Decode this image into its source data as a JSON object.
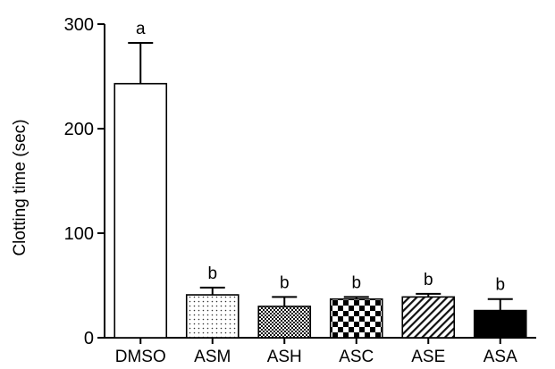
{
  "chart_data": {
    "type": "bar",
    "title": "",
    "xlabel": "",
    "ylabel": "Clotting time (sec)",
    "ylim": [
      0,
      300
    ],
    "yticks": [
      0,
      100,
      200,
      300
    ],
    "grid": false,
    "categories": [
      "DMSO",
      "ASM",
      "ASH",
      "ASC",
      "ASE",
      "ASA"
    ],
    "values": [
      243,
      41,
      30,
      37,
      39,
      26
    ],
    "errors": [
      39,
      7,
      9,
      2,
      3,
      11
    ],
    "significance": [
      "a",
      "b",
      "b",
      "b",
      "b",
      "b"
    ],
    "fills": [
      "empty",
      "dots",
      "grid-fine",
      "checker",
      "diagonal",
      "solid"
    ]
  }
}
